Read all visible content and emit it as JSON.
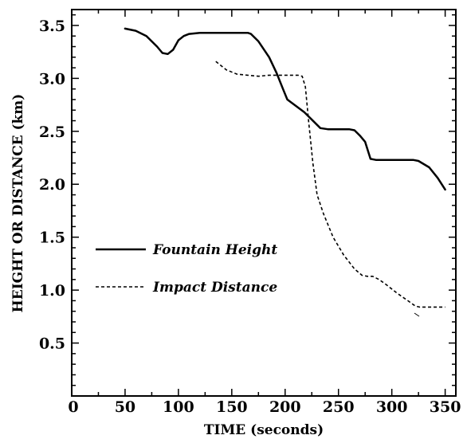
{
  "chart_data": {
    "type": "line",
    "title": "",
    "xlabel": "TIME (seconds)",
    "ylabel": "HEIGHT OR DISTANCE (km)",
    "xlim": [
      0,
      360
    ],
    "ylim": [
      0,
      3.65
    ],
    "x_ticks": [
      "0",
      "50",
      "100",
      "150",
      "200",
      "250",
      "300",
      "350"
    ],
    "y_ticks": [
      "0.5",
      "1.0",
      "1.5",
      "2.0",
      "2.5",
      "3.0",
      "3.5"
    ],
    "grid": false,
    "legend_position": "center-left",
    "series": [
      {
        "name": "Fountain Height",
        "style": "solid",
        "x": [
          50,
          60,
          70,
          80,
          85,
          90,
          95,
          100,
          105,
          110,
          120,
          130,
          150,
          165,
          168,
          175,
          185,
          192,
          198,
          202,
          210,
          218,
          225,
          233,
          240,
          250,
          260,
          265,
          270,
          275,
          280,
          285,
          300,
          320,
          325,
          335,
          343,
          350
        ],
        "y": [
          3.47,
          3.45,
          3.4,
          3.3,
          3.24,
          3.23,
          3.27,
          3.36,
          3.4,
          3.42,
          3.43,
          3.43,
          3.43,
          3.43,
          3.42,
          3.35,
          3.2,
          3.05,
          2.9,
          2.8,
          2.74,
          2.68,
          2.61,
          2.53,
          2.52,
          2.52,
          2.52,
          2.51,
          2.46,
          2.4,
          2.24,
          2.23,
          2.23,
          2.23,
          2.22,
          2.16,
          2.06,
          1.95
        ]
      },
      {
        "name": "Impact Distance",
        "style": "dashed",
        "x": [
          135,
          145,
          155,
          165,
          175,
          185,
          195,
          205,
          212,
          216,
          219,
          222,
          226,
          230,
          236,
          245,
          255,
          265,
          272,
          277,
          282,
          288,
          295,
          305,
          315,
          322,
          326,
          330,
          350
        ],
        "y": [
          3.16,
          3.08,
          3.04,
          3.03,
          3.02,
          3.03,
          3.03,
          3.03,
          3.03,
          3.02,
          2.92,
          2.6,
          2.2,
          1.9,
          1.72,
          1.5,
          1.33,
          1.2,
          1.14,
          1.13,
          1.13,
          1.1,
          1.05,
          0.97,
          0.9,
          0.85,
          0.84,
          0.84,
          0.84
        ]
      }
    ]
  }
}
